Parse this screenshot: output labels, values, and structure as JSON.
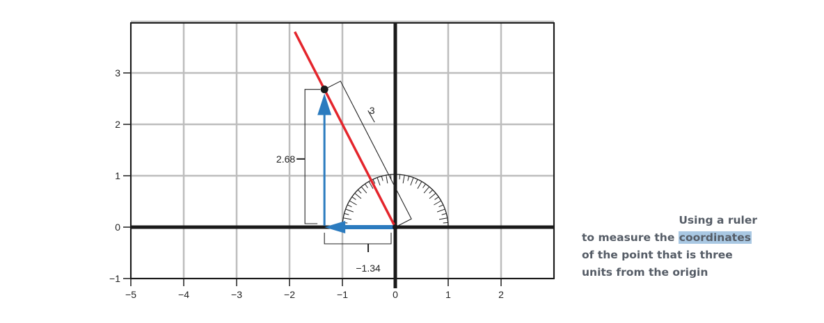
{
  "chart_data": {
    "type": "scatter",
    "xlim": [
      -5,
      3
    ],
    "ylim": [
      -1,
      4
    ],
    "x_ticks": [
      "−5",
      "−4",
      "−3",
      "−2",
      "−1",
      "0",
      "1",
      "2"
    ],
    "y_ticks": [
      "−1",
      "0",
      "1",
      "2",
      "3"
    ],
    "grid": true,
    "point": {
      "x": -1.34,
      "y": 2.68
    },
    "vector_length_label": "3",
    "x_component_label": "−1.34",
    "y_component_label": "2.68",
    "line_slope": -2,
    "tool": "protractor"
  },
  "caption": {
    "line1": "Using a ruler",
    "line2_pre": "to measure the ",
    "line2_highlight": "coordinates",
    "line3": "of the point that is three",
    "line4": "units from the origin"
  },
  "colors": {
    "line": "#e4252c",
    "vector": "#2b7bbf",
    "axis": "#1a1a1a",
    "grid": "#bdbdbd",
    "highlight": "#a9c8e3"
  }
}
